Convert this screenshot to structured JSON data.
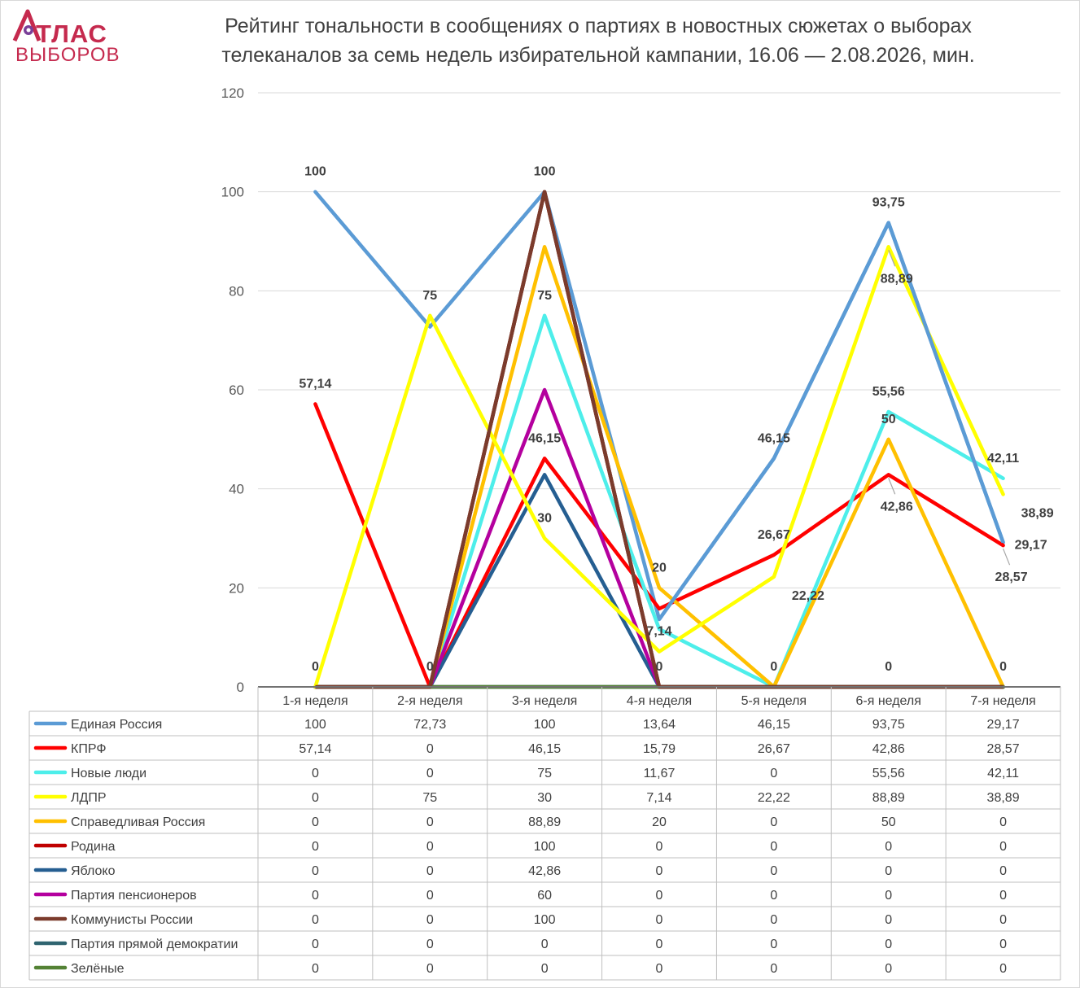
{
  "logo": {
    "top": "ТЛАС",
    "bottom": "ВЫБОРОВ"
  },
  "chart_data": {
    "type": "line",
    "title": "Рейтинг тональности в сообщениях о партиях в новостных сюжетах о выборах телеканалов за семь недель избирательной кампании, 16.06 — 2.08.2026, мин.",
    "title_lines": [
      "Рейтинг тональности в сообщениях о партиях в новостных сюжетах о выборах",
      "телеканалов за семь недель избирательной кампании, 16.06 — 2.08.2026, мин."
    ],
    "categories": [
      "1-я неделя",
      "2-я неделя",
      "3-я неделя",
      "4-я неделя",
      "5-я неделя",
      "6-я неделя",
      "7-я неделя"
    ],
    "ylim": [
      0,
      120
    ],
    "yticks": [
      0,
      20,
      40,
      60,
      80,
      100,
      120
    ],
    "grid": true,
    "legend": "data-table",
    "series": [
      {
        "name": "Единая Россия",
        "color": "#5b9bd5",
        "values": [
          100,
          72.73,
          100,
          13.64,
          46.15,
          93.75,
          29.17
        ],
        "cells": [
          "100",
          "72,73",
          "100",
          "13,64",
          "46,15",
          "93,75",
          "29,17"
        ]
      },
      {
        "name": "КПРФ",
        "color": "#ff0000",
        "values": [
          57.14,
          0,
          46.15,
          15.79,
          26.67,
          42.86,
          28.57
        ],
        "cells": [
          "57,14",
          "0",
          "46,15",
          "15,79",
          "26,67",
          "42,86",
          "28,57"
        ]
      },
      {
        "name": "Новые люди",
        "color": "#4deeea",
        "values": [
          0,
          0,
          75,
          11.67,
          0,
          55.56,
          42.11
        ],
        "cells": [
          "0",
          "0",
          "75",
          "11,67",
          "0",
          "55,56",
          "42,11"
        ]
      },
      {
        "name": "ЛДПР",
        "color": "#ffff00",
        "values": [
          0,
          75,
          30,
          7.14,
          22.22,
          88.89,
          38.89
        ],
        "cells": [
          "0",
          "75",
          "30",
          "7,14",
          "22,22",
          "88,89",
          "38,89"
        ]
      },
      {
        "name": "Справедливая Россия",
        "color": "#ffc000",
        "values": [
          0,
          0,
          88.89,
          20,
          0,
          50,
          0
        ],
        "cells": [
          "0",
          "0",
          "88,89",
          "20",
          "0",
          "50",
          "0"
        ]
      },
      {
        "name": "Родина",
        "color": "#c00000",
        "values": [
          0,
          0,
          100,
          0,
          0,
          0,
          0
        ],
        "cells": [
          "0",
          "0",
          "100",
          "0",
          "0",
          "0",
          "0"
        ]
      },
      {
        "name": "Яблоко",
        "color": "#255e91",
        "values": [
          0,
          0,
          42.86,
          0,
          0,
          0,
          0
        ],
        "cells": [
          "0",
          "0",
          "42,86",
          "0",
          "0",
          "0",
          "0"
        ]
      },
      {
        "name": "Партия пенсионеров",
        "color": "#b4009e",
        "values": [
          0,
          0,
          60,
          0,
          0,
          0,
          0
        ],
        "cells": [
          "0",
          "0",
          "60",
          "0",
          "0",
          "0",
          "0"
        ]
      },
      {
        "name": "Коммунисты России",
        "color": "#7b3b2c",
        "values": [
          0,
          0,
          100,
          0,
          0,
          0,
          0
        ],
        "cells": [
          "0",
          "0",
          "100",
          "0",
          "0",
          "0",
          "0"
        ]
      },
      {
        "name": "Партия прямой демократии",
        "color": "#2f6470",
        "values": [
          0,
          0,
          0,
          0,
          0,
          0,
          0
        ],
        "cells": [
          "0",
          "0",
          "0",
          "0",
          "0",
          "0",
          "0"
        ]
      },
      {
        "name": "Зелёные",
        "color": "#548235",
        "values": [
          0,
          0,
          0,
          0,
          0,
          0,
          0
        ],
        "cells": [
          "0",
          "0",
          "0",
          "0",
          "0",
          "0",
          "0"
        ]
      }
    ],
    "data_labels": [
      {
        "text": "100",
        "point": [
          0,
          100
        ],
        "dir": "above"
      },
      {
        "text": "57,14",
        "point": [
          0,
          57.14
        ],
        "dir": "above"
      },
      {
        "text": "0",
        "point": [
          0,
          0
        ],
        "dir": "above"
      },
      {
        "text": "75",
        "point": [
          1,
          75
        ],
        "dir": "above"
      },
      {
        "text": "0",
        "point": [
          1,
          0
        ],
        "dir": "above"
      },
      {
        "text": "100",
        "point": [
          2,
          100
        ],
        "dir": "above"
      },
      {
        "text": "75",
        "point": [
          2,
          75
        ],
        "dir": "above"
      },
      {
        "text": "46,15",
        "point": [
          2,
          46.15
        ],
        "dir": "above"
      },
      {
        "text": "30",
        "point": [
          2,
          30
        ],
        "dir": "above"
      },
      {
        "text": "20",
        "point": [
          3,
          20
        ],
        "dir": "above"
      },
      {
        "text": "7,14",
        "point": [
          3,
          7.14
        ],
        "dir": "above"
      },
      {
        "text": "0",
        "point": [
          3,
          0
        ],
        "dir": "above"
      },
      {
        "text": "46,15",
        "point": [
          4,
          46.15
        ],
        "dir": "above"
      },
      {
        "text": "26,67",
        "point": [
          4,
          26.67
        ],
        "dir": "above"
      },
      {
        "text": "22,22",
        "point": [
          4,
          22.22
        ],
        "dir": "right-below"
      },
      {
        "text": "0",
        "point": [
          4,
          0
        ],
        "dir": "above"
      },
      {
        "text": "93,75",
        "point": [
          5,
          93.75
        ],
        "dir": "above"
      },
      {
        "text": "88,89",
        "point": [
          5,
          88.89
        ],
        "dir": "below-leader"
      },
      {
        "text": "55,56",
        "point": [
          5,
          55.56
        ],
        "dir": "above"
      },
      {
        "text": "50",
        "point": [
          5,
          50
        ],
        "dir": "above"
      },
      {
        "text": "42,86",
        "point": [
          5,
          42.86
        ],
        "dir": "below-leader"
      },
      {
        "text": "0",
        "point": [
          5,
          0
        ],
        "dir": "above"
      },
      {
        "text": "42,11",
        "point": [
          6,
          42.11
        ],
        "dir": "above"
      },
      {
        "text": "38,89",
        "point": [
          6,
          38.89
        ],
        "dir": "right-below"
      },
      {
        "text": "29,17",
        "point": [
          6,
          29.17
        ],
        "dir": "right"
      },
      {
        "text": "28,57",
        "point": [
          6,
          28.57
        ],
        "dir": "below-leader"
      },
      {
        "text": "0",
        "point": [
          6,
          0
        ],
        "dir": "above"
      }
    ]
  }
}
